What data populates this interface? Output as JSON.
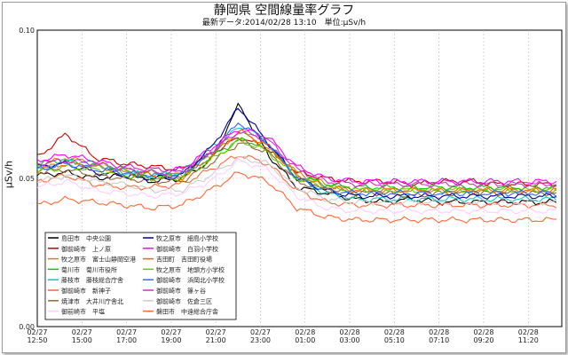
{
  "chart_data": {
    "type": "line",
    "title": "静岡県 空間線量率グラフ",
    "subtitle": "最新データ:2014/02/28 13:10　単位:μSv/h",
    "ylabel": "μSv/h",
    "xlabel": "",
    "ylim": [
      0,
      0.1
    ],
    "y_ticks": [
      "0.00",
      "0.05",
      "0.10"
    ],
    "x_ticks": [
      {
        "date": "02/27",
        "time": "12:50"
      },
      {
        "date": "02/27",
        "time": "15:00"
      },
      {
        "date": "02/27",
        "time": "17:00"
      },
      {
        "date": "02/27",
        "time": "19:00"
      },
      {
        "date": "02/27",
        "time": "21:00"
      },
      {
        "date": "02/27",
        "time": "23:00"
      },
      {
        "date": "02/28",
        "time": "01:00"
      },
      {
        "date": "02/28",
        "time": "03:00"
      },
      {
        "date": "02/28",
        "time": "05:10"
      },
      {
        "date": "02/28",
        "time": "07:10"
      },
      {
        "date": "02/28",
        "time": "09:20"
      },
      {
        "date": "02/28",
        "time": "11:20"
      }
    ],
    "grid": true,
    "legend_position": "bottom-left",
    "series": [
      {
        "name": "島田市　中央公園",
        "color": "#000000",
        "values": [
          0.051,
          0.052,
          0.05,
          0.051,
          0.049,
          0.05,
          0.056,
          0.075,
          0.058,
          0.047,
          0.045,
          0.043,
          0.042,
          0.043,
          0.042,
          0.042,
          0.042,
          0.042,
          0.042
        ]
      },
      {
        "name": "御前崎市　上ノ原",
        "color": "#cc0000",
        "values": [
          0.057,
          0.065,
          0.057,
          0.055,
          0.054,
          0.053,
          0.058,
          0.064,
          0.06,
          0.052,
          0.05,
          0.049,
          0.049,
          0.048,
          0.049,
          0.049,
          0.048,
          0.048,
          0.048
        ]
      },
      {
        "name": "牧之原市　富士山静岡空港",
        "color": "#cc8800",
        "values": [
          0.054,
          0.057,
          0.055,
          0.053,
          0.052,
          0.051,
          0.058,
          0.066,
          0.06,
          0.052,
          0.048,
          0.046,
          0.046,
          0.046,
          0.046,
          0.046,
          0.046,
          0.046,
          0.046
        ]
      },
      {
        "name": "菊川市　菊川市役所",
        "color": "#00cc00",
        "values": [
          0.055,
          0.056,
          0.054,
          0.053,
          0.051,
          0.051,
          0.057,
          0.063,
          0.061,
          0.051,
          0.048,
          0.047,
          0.047,
          0.047,
          0.047,
          0.047,
          0.047,
          0.047,
          0.047
        ]
      },
      {
        "name": "藤枝市　藤枝総合庁舎",
        "color": "#00cccc",
        "values": [
          0.053,
          0.056,
          0.055,
          0.052,
          0.051,
          0.052,
          0.06,
          0.067,
          0.062,
          0.05,
          0.045,
          0.043,
          0.043,
          0.043,
          0.043,
          0.043,
          0.043,
          0.043,
          0.043
        ]
      },
      {
        "name": "御前崎市　新神子",
        "color": "#ff6633",
        "values": [
          0.049,
          0.051,
          0.048,
          0.047,
          0.047,
          0.048,
          0.053,
          0.058,
          0.055,
          0.046,
          0.042,
          0.041,
          0.041,
          0.041,
          0.041,
          0.041,
          0.041,
          0.041,
          0.041
        ]
      },
      {
        "name": "焼津市　大井川庁舎北",
        "color": "#996633",
        "values": [
          0.052,
          0.053,
          0.051,
          0.05,
          0.049,
          0.049,
          0.055,
          0.062,
          0.059,
          0.049,
          0.046,
          0.045,
          0.045,
          0.044,
          0.045,
          0.045,
          0.045,
          0.045,
          0.045
        ]
      },
      {
        "name": "御前崎市　平塩",
        "color": "#ffccff",
        "values": [
          0.047,
          0.049,
          0.046,
          0.045,
          0.044,
          0.045,
          0.049,
          0.056,
          0.053,
          0.044,
          0.04,
          0.039,
          0.039,
          0.039,
          0.039,
          0.039,
          0.039,
          0.039,
          0.039
        ]
      },
      {
        "name": "牧之原市　細島小学校",
        "color": "#000099",
        "values": [
          0.054,
          0.055,
          0.052,
          0.051,
          0.05,
          0.051,
          0.06,
          0.074,
          0.062,
          0.05,
          0.046,
          0.044,
          0.044,
          0.044,
          0.044,
          0.044,
          0.044,
          0.044,
          0.044
        ]
      },
      {
        "name": "御前崎市　白羽小学校",
        "color": "#ff00ff",
        "values": [
          0.056,
          0.058,
          0.056,
          0.054,
          0.053,
          0.053,
          0.06,
          0.067,
          0.064,
          0.054,
          0.05,
          0.049,
          0.049,
          0.049,
          0.049,
          0.049,
          0.049,
          0.049,
          0.049
        ]
      },
      {
        "name": "吉田町　吉田町役場",
        "color": "#ff6600",
        "values": [
          0.053,
          0.055,
          0.054,
          0.052,
          0.051,
          0.05,
          0.057,
          0.066,
          0.061,
          0.051,
          0.047,
          0.046,
          0.046,
          0.046,
          0.046,
          0.046,
          0.046,
          0.046,
          0.046
        ]
      },
      {
        "name": "牧之原市　地頭方小学校",
        "color": "#66cc00",
        "values": [
          0.052,
          0.054,
          0.053,
          0.051,
          0.05,
          0.05,
          0.056,
          0.063,
          0.059,
          0.05,
          0.047,
          0.046,
          0.046,
          0.046,
          0.046,
          0.046,
          0.046,
          0.046,
          0.046
        ]
      },
      {
        "name": "御前崎市　浜岡北小学校",
        "color": "#3366ff",
        "values": [
          0.053,
          0.055,
          0.053,
          0.052,
          0.051,
          0.051,
          0.058,
          0.069,
          0.062,
          0.05,
          0.046,
          0.045,
          0.045,
          0.045,
          0.045,
          0.045,
          0.045,
          0.045,
          0.045
        ]
      },
      {
        "name": "御前崎市　篠ヶ谷",
        "color": "#cc33cc",
        "values": [
          0.055,
          0.056,
          0.055,
          0.053,
          0.052,
          0.052,
          0.059,
          0.066,
          0.063,
          0.053,
          0.049,
          0.048,
          0.048,
          0.048,
          0.048,
          0.048,
          0.048,
          0.048,
          0.048
        ]
      },
      {
        "name": "御前崎市　佐倉三区",
        "color": "#cccccc",
        "values": [
          0.049,
          0.051,
          0.049,
          0.048,
          0.046,
          0.046,
          0.051,
          0.057,
          0.055,
          0.047,
          0.043,
          0.042,
          0.042,
          0.042,
          0.042,
          0.042,
          0.042,
          0.042,
          0.042
        ]
      },
      {
        "name": "磐田市　中遠総合庁舎",
        "color": "#ff6633",
        "values": [
          0.041,
          0.043,
          0.042,
          0.041,
          0.04,
          0.041,
          0.046,
          0.052,
          0.049,
          0.04,
          0.037,
          0.036,
          0.036,
          0.036,
          0.036,
          0.036,
          0.036,
          0.036,
          0.036
        ]
      }
    ]
  }
}
